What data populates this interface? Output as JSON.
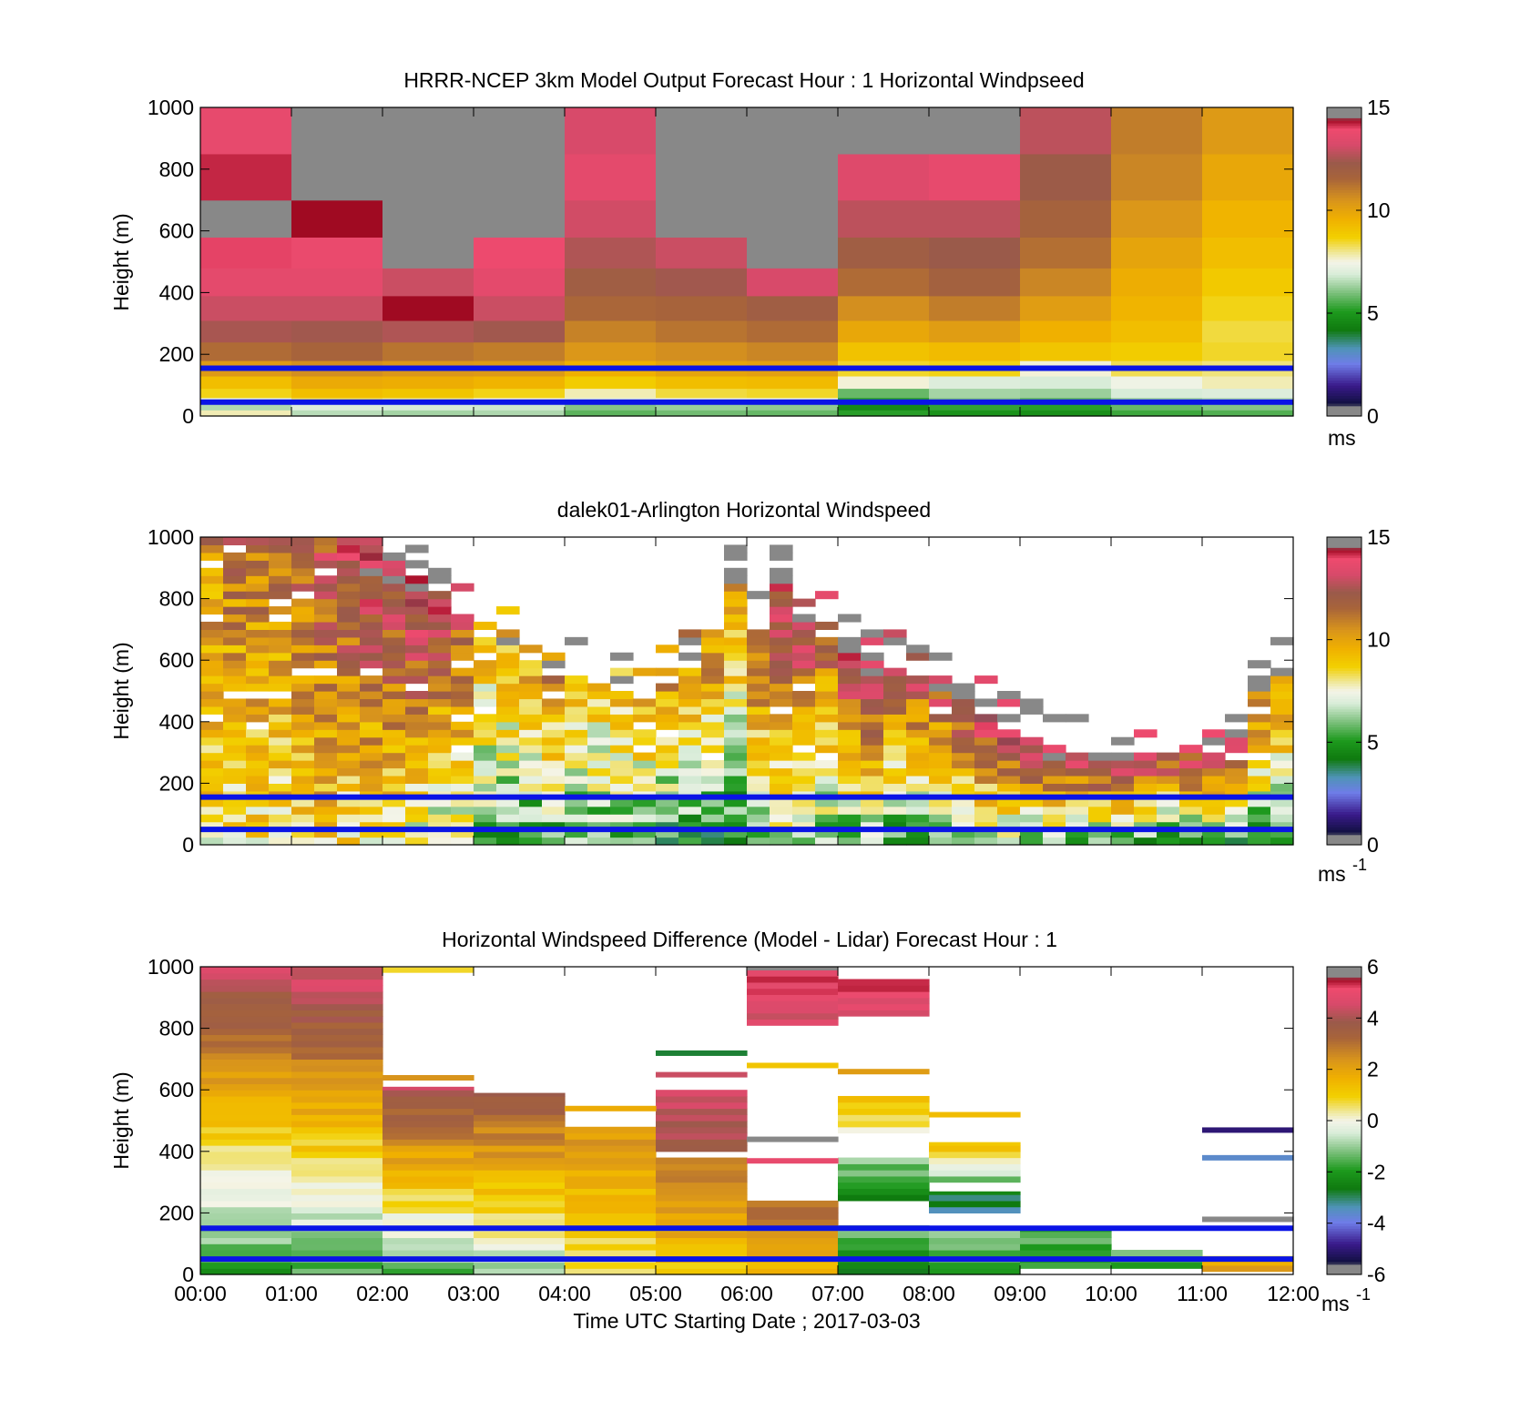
{
  "figure": {
    "xlabel": "Time UTC  Starting Date ; 2017-03-03",
    "x_ticks": [
      "00:00",
      "01:00",
      "02:00",
      "03:00",
      "04:00",
      "05:00",
      "06:00",
      "07:00",
      "08:00",
      "09:00",
      "10:00",
      "11:00",
      "12:00"
    ],
    "y_ticks": [
      "0",
      "200",
      "400",
      "600",
      "800",
      "1000"
    ]
  },
  "chart_data": [
    {
      "type": "heatmap",
      "title": "HRRR-NCEP 3km Model Output   Forecast Hour : 1 Horizontal Windpseed",
      "ylabel": "Height (m)",
      "xlim": [
        0,
        12
      ],
      "ylim": [
        0,
        1000
      ],
      "colorbar": {
        "ticks": [
          "0",
          "5",
          "10",
          "15"
        ],
        "range": [
          0,
          15
        ],
        "unit": "ms",
        "unit_sup": ""
      },
      "reference_lines_m": [
        45,
        155
      ],
      "level_bottoms_m": [
        0,
        20,
        40,
        60,
        90,
        130,
        180,
        240,
        310,
        390,
        480,
        580,
        700,
        850
      ],
      "level_tops_m": [
        20,
        40,
        60,
        90,
        130,
        180,
        240,
        310,
        390,
        480,
        580,
        700,
        850,
        1000
      ],
      "columns_ms": [
        [
          7.8,
          6.5,
          7.2,
          8.6,
          9.2,
          10.3,
          11.4,
          12.5,
          13.0,
          13.6,
          14.0,
          14.6,
          14.2,
          13.7
        ],
        [
          6.6,
          7.0,
          8.2,
          9.2,
          9.8,
          10.6,
          11.6,
          12.4,
          13.0,
          13.6,
          13.8,
          14.4,
          15.5,
          15.5
        ],
        [
          6.4,
          6.9,
          8.0,
          9.0,
          9.7,
          10.4,
          11.2,
          12.6,
          14.4,
          13.0,
          15.5,
          15.5,
          15.5,
          15.5
        ],
        [
          6.5,
          6.8,
          7.6,
          8.6,
          9.5,
          10.3,
          11.0,
          12.4,
          13.0,
          13.6,
          13.9,
          14.6,
          15.5,
          15.5
        ],
        [
          5.7,
          6.1,
          7.2,
          7.8,
          8.8,
          9.6,
          10.4,
          10.9,
          11.5,
          12.0,
          12.6,
          13.1,
          13.6,
          13.2
        ],
        [
          5.9,
          6.3,
          7.4,
          8.4,
          9.2,
          10.0,
          10.6,
          11.2,
          11.6,
          12.4,
          13.0,
          14.6,
          15.5,
          15.5
        ],
        [
          5.8,
          6.2,
          7.4,
          8.5,
          9.3,
          10.1,
          10.8,
          11.4,
          12.0,
          13.2,
          14.6,
          15.5,
          15.5,
          15.5
        ],
        [
          5.2,
          4.6,
          5.2,
          5.8,
          7.6,
          8.5,
          9.1,
          9.9,
          10.6,
          11.4,
          12.0,
          12.8,
          13.4,
          14.6
        ],
        [
          4.9,
          5.3,
          6.1,
          6.4,
          7.0,
          8.6,
          9.3,
          10.2,
          11.0,
          11.8,
          12.3,
          12.8,
          13.7,
          15.5
        ],
        [
          4.8,
          5.2,
          5.7,
          6.3,
          6.9,
          7.6,
          9.0,
          9.6,
          10.2,
          10.8,
          11.3,
          11.7,
          12.2,
          12.8
        ],
        [
          5.4,
          5.8,
          6.3,
          6.9,
          7.4,
          8.3,
          8.8,
          9.2,
          9.5,
          9.7,
          10.0,
          10.4,
          10.8,
          11.0
        ],
        [
          5.6,
          6.1,
          6.5,
          7.0,
          7.8,
          8.1,
          8.5,
          8.4,
          8.6,
          8.9,
          9.2,
          9.5,
          9.9,
          10.3
        ]
      ]
    },
    {
      "type": "heatmap",
      "title": "dalek01-Arlington  Horizontal Windspeed",
      "ylabel": "Height (m)",
      "xlim": [
        0,
        12
      ],
      "ylim": [
        0,
        1000
      ],
      "colorbar": {
        "ticks": [
          "0",
          "5",
          "10",
          "15"
        ],
        "range": [
          0,
          15
        ],
        "unit": "ms",
        "unit_sup": "-1"
      },
      "reference_lines_m": [
        50,
        155
      ],
      "time_step_hours": 0.25,
      "level_step_m": 25,
      "valid_top_m": [
        1000,
        1000,
        1000,
        1000,
        1000,
        1000,
        1000,
        1000,
        950,
        875,
        825,
        725,
        725,
        650,
        600,
        550,
        550,
        525,
        500,
        475,
        525,
        575,
        700,
        850,
        700,
        850,
        725,
        725,
        675,
        600,
        575,
        550,
        500,
        475,
        425,
        375,
        350,
        325,
        300,
        300,
        300,
        300,
        300,
        325,
        325,
        350,
        500,
        550
      ],
      "column_speed_bottom_ms": [
        8.2,
        8.0,
        8.3,
        8.4,
        8.6,
        8.8,
        8.2,
        8.0,
        7.6,
        7.2,
        6.8,
        6.6,
        5.6,
        5.4,
        5.2,
        5.3,
        5.5,
        5.8,
        5.4,
        5.2,
        4.6,
        4.8,
        4.5,
        4.3,
        6.3,
        6.6,
        6.0,
        5.8,
        5.4,
        5.6,
        5.2,
        5.0,
        5.4,
        5.8,
        6.0,
        6.2,
        6.1,
        5.8,
        5.6,
        5.6,
        5.4,
        5.2,
        5.0,
        4.8,
        4.6,
        4.5,
        4.8,
        5.0
      ],
      "column_speed_top_ms": [
        10.8,
        11.5,
        11.2,
        11.6,
        11.8,
        12.6,
        13.6,
        14.2,
        14.0,
        14.4,
        13.4,
        12.2,
        9.6,
        9.8,
        10.0,
        10.8,
        9.4,
        9.0,
        9.4,
        10.2,
        10.5,
        10.8,
        11.4,
        11.0,
        12.6,
        13.4,
        13.8,
        12.4,
        14.6,
        15.0,
        13.0,
        12.8,
        12.6,
        13.8,
        14.2,
        14.6,
        15.0,
        15.4,
        14.0,
        15.2,
        14.8,
        14.4,
        13.8,
        14.2,
        14.6,
        15.0,
        11.8,
        11.2
      ]
    },
    {
      "type": "heatmap",
      "title": "Horizontal Windspeed Difference (Model - Lidar) Forecast Hour : 1",
      "ylabel": "Height (m)",
      "xlim": [
        0,
        12
      ],
      "ylim": [
        0,
        1000
      ],
      "colorbar": {
        "ticks": [
          "-6",
          "-4",
          "-2",
          "0",
          "2",
          "4",
          "6"
        ],
        "range": [
          -6,
          6
        ],
        "unit": "ms",
        "unit_sup": "-1"
      },
      "reference_lines_m": [
        50,
        150
      ],
      "level_step_m": 20,
      "columns": [
        {
          "hour": 0,
          "bottom_m": 0,
          "top_m": 1000,
          "diff_bottom_ms": -1.8,
          "diff_top_ms": 4.6
        },
        {
          "hour": 1,
          "bottom_m": 0,
          "top_m": 1000,
          "diff_bottom_ms": -1.6,
          "diff_top_ms": 4.8
        },
        {
          "hour": 2,
          "bottom_m": 0,
          "top_m": 610,
          "diff_bottom_ms": -1.4,
          "diff_top_ms": 4.2
        },
        {
          "hour": 3,
          "bottom_m": 0,
          "top_m": 590,
          "diff_bottom_ms": -0.8,
          "diff_top_ms": 3.8
        },
        {
          "hour": 4,
          "bottom_m": 0,
          "top_m": 480,
          "diff_bottom_ms": 0.6,
          "diff_top_ms": 2.4
        },
        {
          "hour": 5,
          "bottom_m": 0,
          "top_m": 380,
          "diff_bottom_ms": 1.2,
          "diff_top_ms": 3.0
        },
        {
          "hour": 5,
          "bottom_m": 400,
          "top_m": 600,
          "diff_bottom_ms": 3.6,
          "diff_top_ms": 4.8
        },
        {
          "hour": 6,
          "bottom_m": 0,
          "top_m": 240,
          "diff_bottom_ms": 1.6,
          "diff_top_ms": 3.2
        },
        {
          "hour": 6,
          "bottom_m": 810,
          "top_m": 1000,
          "diff_bottom_ms": 4.6,
          "diff_top_ms": 5.4
        },
        {
          "hour": 7,
          "bottom_m": 0,
          "top_m": 160,
          "diff_bottom_ms": -2.4,
          "diff_top_ms": -1.2
        },
        {
          "hour": 7,
          "bottom_m": 240,
          "top_m": 380,
          "diff_bottom_ms": -2.8,
          "diff_top_ms": -0.6
        },
        {
          "hour": 7,
          "bottom_m": 460,
          "top_m": 580,
          "diff_bottom_ms": 0.2,
          "diff_top_ms": 1.2
        },
        {
          "hour": 7,
          "bottom_m": 840,
          "top_m": 960,
          "diff_bottom_ms": 4.4,
          "diff_top_ms": 6.0
        },
        {
          "hour": 8,
          "bottom_m": 0,
          "top_m": 150,
          "diff_bottom_ms": -1.8,
          "diff_top_ms": -0.8
        },
        {
          "hour": 8,
          "bottom_m": 200,
          "top_m": 270,
          "diff_bottom_ms": -3.0,
          "diff_top_ms": -2.6
        },
        {
          "hour": 8,
          "bottom_m": 300,
          "top_m": 430,
          "diff_bottom_ms": -1.2,
          "diff_top_ms": 1.6
        },
        {
          "hour": 9,
          "bottom_m": 20,
          "top_m": 150,
          "diff_bottom_ms": -2.0,
          "diff_top_ms": -1.4
        },
        {
          "hour": 10,
          "bottom_m": 20,
          "top_m": 80,
          "diff_bottom_ms": -1.6,
          "diff_top_ms": -0.6
        },
        {
          "hour": 11,
          "bottom_m": 10,
          "top_m": 60,
          "diff_bottom_ms": 2.0,
          "diff_top_ms": 0.6
        }
      ],
      "thin_bands": [
        {
          "hour": 2,
          "height_m": 990,
          "diff_ms": 0.8
        },
        {
          "hour": 2,
          "height_m": 640,
          "diff_ms": 2.4
        },
        {
          "hour": 4,
          "height_m": 540,
          "diff_ms": 1.8
        },
        {
          "hour": 5,
          "height_m": 720,
          "diff_ms": -2.8
        },
        {
          "hour": 5,
          "height_m": 650,
          "diff_ms": 4.4
        },
        {
          "hour": 6,
          "height_m": 440,
          "diff_ms": 6.0
        },
        {
          "hour": 6,
          "height_m": 370,
          "diff_ms": 5.0
        },
        {
          "hour": 6,
          "height_m": 680,
          "diff_ms": 1.2
        },
        {
          "hour": 7,
          "height_m": 660,
          "diff_ms": 2.2
        },
        {
          "hour": 8,
          "height_m": 520,
          "diff_ms": 1.4
        },
        {
          "hour": 11,
          "height_m": 470,
          "diff_ms": -5.0
        },
        {
          "hour": 11,
          "height_m": 380,
          "diff_ms": -3.6
        },
        {
          "hour": 11,
          "height_m": 180,
          "diff_ms": 6.0
        }
      ]
    }
  ]
}
